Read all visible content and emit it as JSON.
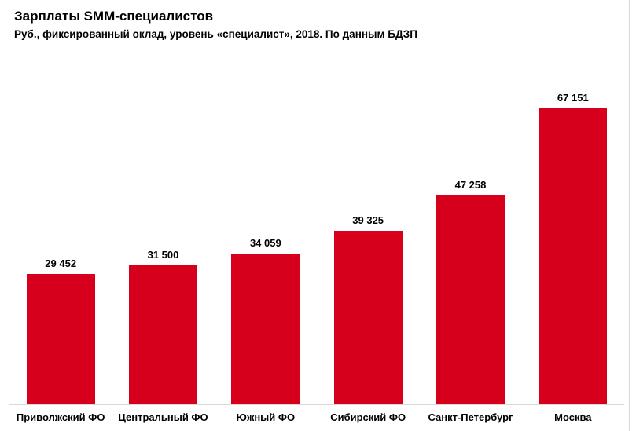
{
  "header": {
    "title": "Зарплаты SMM-специалистов",
    "subtitle": "Руб., фиксированный оклад, уровень «специалист», 2018. По данным БДЗП"
  },
  "chart_data": {
    "type": "bar",
    "title": "Зарплаты SMM-специалистов",
    "subtitle": "Руб., фиксированный оклад, уровень «специалист», 2018. По данным БДЗП",
    "categories": [
      "Приволжский ФО",
      "Центральный ФО",
      "Южный ФО",
      "Сибирский ФО",
      "Санкт-Петербург",
      "Москва"
    ],
    "values": [
      29452,
      31500,
      34059,
      39325,
      47258,
      67151
    ],
    "value_labels": [
      "29 452",
      "31 500",
      "34 059",
      "39 325",
      "47 258",
      "67 151"
    ],
    "xlabel": "",
    "ylabel": "",
    "ylim": [
      0,
      70000
    ],
    "grid": false,
    "legend": false,
    "orientation": "vertical",
    "bar_color": "#d6001c",
    "baseline_color": "#d9d9d9",
    "label_color": "#000000"
  },
  "colors": {
    "background": "#ffffff",
    "bar": "#d6001c",
    "baseline": "#d9d9d9",
    "divider": "#d9d9d9",
    "text": "#000000"
  }
}
